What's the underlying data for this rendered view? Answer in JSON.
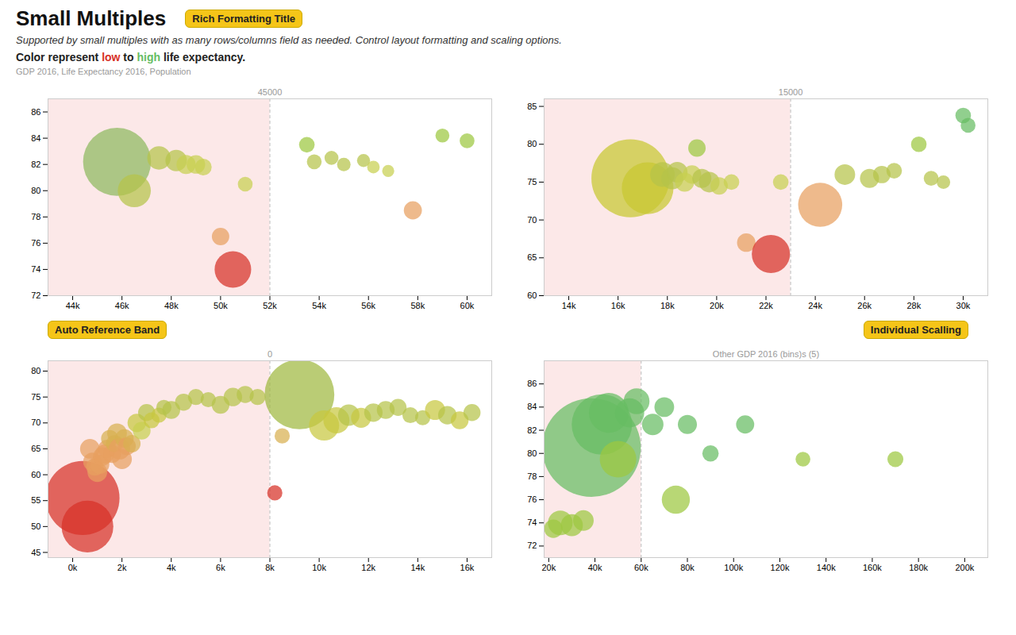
{
  "title": "Small Multiples",
  "subtitle": "Supported by small multiples with as many rows/columns field as needed. Control layout formatting and scaling options.",
  "color_note": [
    {
      "text": "Color represent "
    },
    {
      "text": "low",
      "color": "#d73027"
    },
    {
      "text": " to "
    },
    {
      "text": "high",
      "color": "#66bd63"
    },
    {
      "text": " life expectancy."
    }
  ],
  "axis_label": "GDP 2016,  Life Expectancy 2016,  Population",
  "background": "#ffffff",
  "band_color": "#fce8e8",
  "annotations": [
    {
      "text": "Rich Formatting Title",
      "color": "#f5c518"
    },
    {
      "text": "Auto Reference Band",
      "color": "#f5c518"
    },
    {
      "text": "Individual Scalling",
      "color": "#f5c518"
    }
  ],
  "chart_data": [
    {
      "type": "scatter",
      "xlim": [
        43000,
        61000
      ],
      "ylim": [
        72,
        87
      ],
      "xticks": [
        {
          "value": 44000,
          "label": "44k"
        },
        {
          "value": 46000,
          "label": "46k"
        },
        {
          "value": 48000,
          "label": "48k"
        },
        {
          "value": 50000,
          "label": "50k"
        },
        {
          "value": 52000,
          "label": "52k"
        },
        {
          "value": 54000,
          "label": "54k"
        },
        {
          "value": 56000,
          "label": "56k"
        },
        {
          "value": 58000,
          "label": "58k"
        },
        {
          "value": 60000,
          "label": "60k"
        }
      ],
      "yticks": [
        72,
        74,
        76,
        78,
        80,
        82,
        84,
        86
      ],
      "reference_x": 52000,
      "annotations": [
        {
          "text": "45000",
          "x": 52000
        }
      ],
      "x": [
        45800,
        46500,
        47500,
        48200,
        48600,
        49000,
        49300,
        50000,
        50500,
        51000,
        53500,
        53800,
        54500,
        55000,
        55800,
        56200,
        56800,
        57800,
        59000,
        60000
      ],
      "y": [
        82.2,
        80.0,
        82.5,
        82.3,
        82.0,
        82.0,
        81.8,
        76.5,
        74.0,
        80.5,
        83.5,
        82.2,
        82.5,
        82.0,
        82.3,
        81.8,
        81.5,
        78.5,
        84.2,
        83.8
      ],
      "sizes": [
        3800,
        900,
        450,
        380,
        300,
        280,
        230,
        250,
        1100,
        180,
        200,
        180,
        160,
        150,
        140,
        130,
        120,
        270,
        160,
        180
      ],
      "colors": [
        "#8db85e",
        "#b5c34a",
        "#b5c34a",
        "#b5c34a",
        "#c8d050",
        "#c8d050",
        "#c8d050",
        "#e8a060",
        "#d73027",
        "#c8d050",
        "#9dc840",
        "#b5c34a",
        "#b5c34a",
        "#b5c34a",
        "#b5c34a",
        "#c8d050",
        "#c8d050",
        "#e8a060",
        "#9dc840",
        "#9dc840"
      ]
    },
    {
      "type": "scatter",
      "xlim": [
        13000,
        31000
      ],
      "ylim": [
        60,
        86
      ],
      "xticks": [
        {
          "value": 14000,
          "label": "14k"
        },
        {
          "value": 16000,
          "label": "16k"
        },
        {
          "value": 18000,
          "label": "18k"
        },
        {
          "value": 20000,
          "label": "20k"
        },
        {
          "value": 22000,
          "label": "22k"
        },
        {
          "value": 24000,
          "label": "24k"
        },
        {
          "value": 26000,
          "label": "26k"
        },
        {
          "value": 28000,
          "label": "28k"
        },
        {
          "value": 30000,
          "label": "30k"
        }
      ],
      "yticks": [
        60,
        65,
        70,
        75,
        80,
        85
      ],
      "reference_x": 23000,
      "annotations": [
        {
          "text": "15000",
          "x": 23000
        }
      ],
      "x": [
        16500,
        17200,
        17800,
        18200,
        18400,
        18700,
        19000,
        19200,
        19400,
        19700,
        20100,
        20600,
        21200,
        22200,
        22600,
        24200,
        25200,
        26200,
        26700,
        27200,
        28200,
        28700,
        29200,
        30000,
        30200
      ],
      "y": [
        75.5,
        74.2,
        76.0,
        75.5,
        76.3,
        75.0,
        76.0,
        79.5,
        75.5,
        75.0,
        74.5,
        75.0,
        67.0,
        65.5,
        75.0,
        72.0,
        76.0,
        75.5,
        76.0,
        76.5,
        80.0,
        75.5,
        75.0,
        83.8,
        82.5
      ],
      "sizes": [
        5000,
        2200,
        500,
        400,
        350,
        300,
        280,
        250,
        300,
        350,
        250,
        200,
        280,
        1200,
        200,
        1600,
        350,
        300,
        250,
        200,
        200,
        180,
        150,
        200,
        180
      ],
      "colors": [
        "#c8c830",
        "#c8c830",
        "#b5c34a",
        "#b5c34a",
        "#b5c34a",
        "#c8d050",
        "#c8d050",
        "#9dc840",
        "#b5c34a",
        "#b5c34a",
        "#c8d050",
        "#c8d050",
        "#e8a060",
        "#d73027",
        "#c8d050",
        "#e8a060",
        "#b5c34a",
        "#b5c34a",
        "#b5c34a",
        "#b5c34a",
        "#9dc840",
        "#b5c34a",
        "#b5c34a",
        "#66bd63",
        "#66bd63"
      ]
    },
    {
      "type": "scatter",
      "xlim": [
        -1000,
        17000
      ],
      "ylim": [
        44,
        82
      ],
      "xticks": [
        {
          "value": 0,
          "label": "0k"
        },
        {
          "value": 2000,
          "label": "2k"
        },
        {
          "value": 4000,
          "label": "4k"
        },
        {
          "value": 6000,
          "label": "6k"
        },
        {
          "value": 8000,
          "label": "8k"
        },
        {
          "value": 10000,
          "label": "10k"
        },
        {
          "value": 12000,
          "label": "12k"
        },
        {
          "value": 14000,
          "label": "14k"
        },
        {
          "value": 16000,
          "label": "16k"
        }
      ],
      "yticks": [
        45,
        50,
        55,
        60,
        65,
        70,
        75,
        80
      ],
      "reference_x": 8000,
      "annotations": [
        {
          "text": "0",
          "x": 8000
        }
      ],
      "x": [
        400,
        600,
        700,
        800,
        900,
        1000,
        1100,
        1200,
        1300,
        1400,
        1500,
        1600,
        1700,
        1800,
        1900,
        2000,
        2100,
        2200,
        2400,
        2600,
        2800,
        3000,
        3200,
        3500,
        3700,
        4000,
        4500,
        5000,
        5500,
        6000,
        6500,
        7000,
        7500,
        8200,
        8500,
        9200,
        10200,
        10700,
        11200,
        11700,
        12200,
        12700,
        13200,
        13700,
        14200,
        14700,
        15200,
        15700,
        16200
      ],
      "y": [
        55.5,
        50.0,
        65.0,
        62.5,
        61.5,
        60.5,
        62.0,
        63.5,
        64.0,
        65.0,
        67.0,
        64.0,
        66.0,
        68.0,
        65.0,
        63.0,
        67.0,
        65.5,
        66.0,
        70.0,
        68.5,
        72.0,
        70.5,
        71.5,
        73.0,
        72.5,
        74.0,
        75.0,
        74.5,
        73.5,
        75.0,
        75.5,
        75.0,
        56.5,
        67.5,
        75.5,
        69.5,
        70.5,
        71.5,
        71.0,
        72.0,
        72.5,
        73.0,
        71.5,
        71.0,
        72.5,
        71.5,
        70.5,
        72.0
      ],
      "sizes": [
        4500,
        2200,
        320,
        280,
        250,
        320,
        300,
        280,
        300,
        270,
        240,
        260,
        240,
        320,
        370,
        320,
        280,
        260,
        250,
        280,
        260,
        240,
        210,
        190,
        190,
        260,
        240,
        210,
        190,
        260,
        280,
        240,
        210,
        190,
        190,
        4000,
        750,
        560,
        380,
        330,
        280,
        260,
        240,
        210,
        190,
        330,
        280,
        260,
        240
      ],
      "colors": [
        "#d73027",
        "#d73027",
        "#e8a060",
        "#e8a060",
        "#e8a060",
        "#e8a060",
        "#e8a060",
        "#e8a060",
        "#e8a060",
        "#e8a060",
        "#d8b050",
        "#e8a060",
        "#d8b050",
        "#d8b050",
        "#e8a060",
        "#e8a060",
        "#d8b050",
        "#e8a060",
        "#d8b050",
        "#c8c840",
        "#c8d050",
        "#b5c34a",
        "#c8c840",
        "#c8c840",
        "#b5c34a",
        "#b5c34a",
        "#b5c34a",
        "#b5c34a",
        "#b5c34a",
        "#b5c34a",
        "#b5c34a",
        "#b5c34a",
        "#b5c34a",
        "#d73027",
        "#d8b050",
        "#a0b840",
        "#c8c840",
        "#c8c840",
        "#b5c34a",
        "#c8c840",
        "#b5c34a",
        "#b5c34a",
        "#b5c34a",
        "#b5c34a",
        "#b5c34a",
        "#c8c840",
        "#b5c34a",
        "#c8c840",
        "#b5c34a"
      ]
    },
    {
      "type": "scatter",
      "xlim": [
        18000,
        210000
      ],
      "ylim": [
        71,
        88
      ],
      "xticks": [
        {
          "value": 20000,
          "label": "20k"
        },
        {
          "value": 40000,
          "label": "40k"
        },
        {
          "value": 60000,
          "label": "60k"
        },
        {
          "value": 80000,
          "label": "80k"
        },
        {
          "value": 100000,
          "label": "100k"
        },
        {
          "value": 120000,
          "label": "120k"
        },
        {
          "value": 140000,
          "label": "140k"
        },
        {
          "value": 160000,
          "label": "160k"
        },
        {
          "value": 180000,
          "label": "180k"
        },
        {
          "value": 200000,
          "label": "200k"
        }
      ],
      "yticks": [
        72,
        74,
        76,
        78,
        80,
        82,
        84,
        86
      ],
      "reference_x": 60000,
      "annotations": [
        {
          "text": "Other GDP 2016 (bins)s (5)",
          "x": 114000
        }
      ],
      "x": [
        22000,
        25000,
        30000,
        35000,
        38500,
        43000,
        46000,
        50000,
        55000,
        58000,
        65000,
        70000,
        75000,
        80000,
        90000,
        105000,
        130000,
        170000
      ],
      "y": [
        73.5,
        74.0,
        73.8,
        74.2,
        80.5,
        82.5,
        83.5,
        79.5,
        83.5,
        84.5,
        82.5,
        84.0,
        76.0,
        82.5,
        80.0,
        82.5,
        79.5,
        79.5
      ],
      "sizes": [
        280,
        500,
        400,
        350,
        8000,
        3000,
        1300,
        1100,
        700,
        550,
        380,
        320,
        650,
        300,
        220,
        270,
        180,
        210
      ],
      "colors": [
        "#9dc840",
        "#9dc840",
        "#9dc840",
        "#9dc840",
        "#66bd63",
        "#66bd63",
        "#66bd63",
        "#9dc840",
        "#66bd63",
        "#66bd63",
        "#66bd63",
        "#66bd63",
        "#9dc840",
        "#66bd63",
        "#66bd63",
        "#66bd63",
        "#9dc840",
        "#9dc840"
      ]
    }
  ]
}
